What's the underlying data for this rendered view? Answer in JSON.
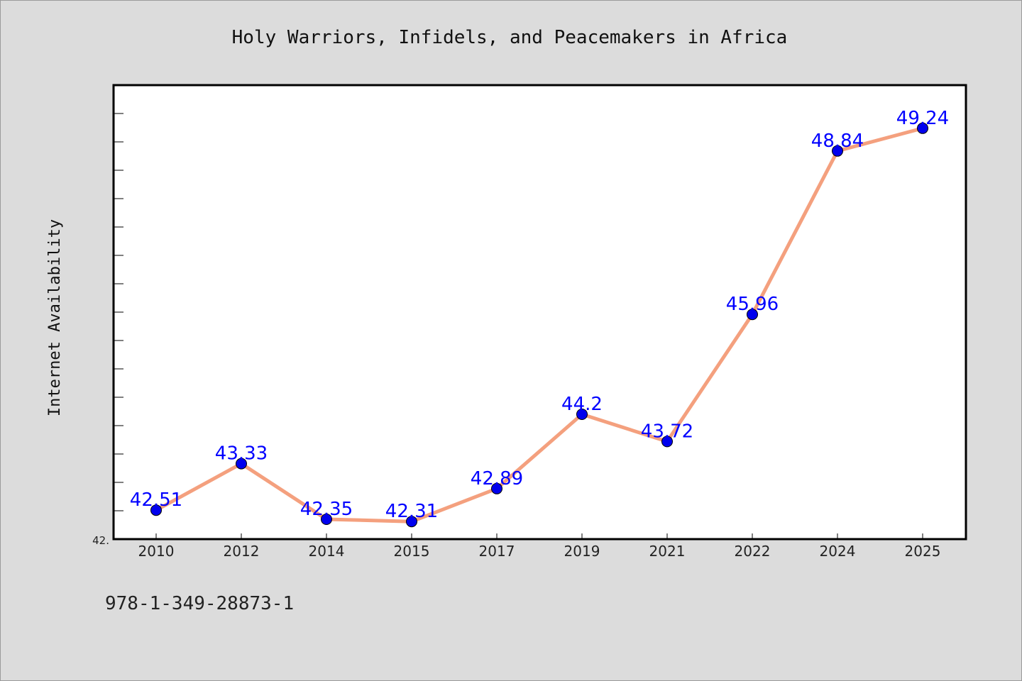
{
  "chart_data": {
    "type": "line",
    "title": "Holy Warriors, Infidels, and Peacemakers in Africa",
    "ylabel": "Internet Availability",
    "xlabel": "",
    "categories": [
      "2010",
      "2012",
      "2014",
      "2015",
      "2017",
      "2019",
      "2021",
      "2022",
      "2024",
      "2025"
    ],
    "series": [
      {
        "values": [
          42.51,
          43.33,
          42.35,
          42.31,
          42.89,
          44.2,
          43.72,
          45.96,
          48.84,
          49.24
        ]
      }
    ],
    "data_labels": [
      "42.51",
      "43.33",
      "42.35",
      "42.31",
      "42.89",
      "44.2",
      "43.72",
      "45.96",
      "48.84",
      "49.24"
    ],
    "ytick_label": "42.",
    "ylim": [
      42.0,
      50.0
    ],
    "grid": false,
    "line_color": "#f4a07e",
    "marker_color": "#0000ee",
    "label_color": "#0000ff"
  },
  "footer": {
    "isbn": "978-1-349-28873-1"
  }
}
